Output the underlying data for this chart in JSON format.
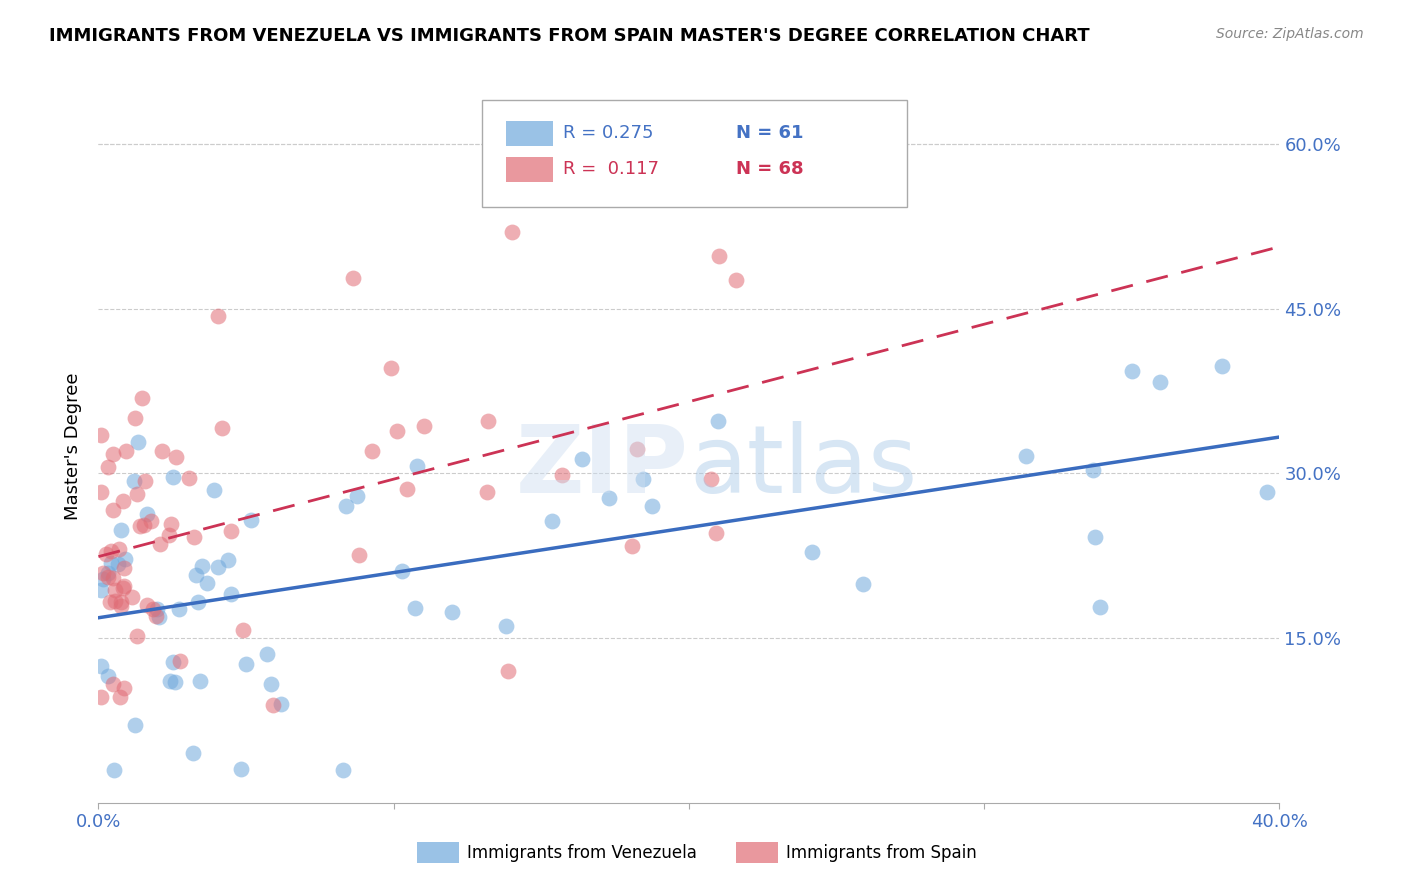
{
  "title": "IMMIGRANTS FROM VENEZUELA VS IMMIGRANTS FROM SPAIN MASTER'S DEGREE CORRELATION CHART",
  "source": "Source: ZipAtlas.com",
  "ylabel": "Master's Degree",
  "ytick_labels": [
    "60.0%",
    "45.0%",
    "30.0%",
    "15.0%"
  ],
  "ytick_values": [
    0.6,
    0.45,
    0.3,
    0.15
  ],
  "xmin": 0.0,
  "xmax": 0.4,
  "ymin": 0.0,
  "ymax": 0.65,
  "blue_color": "#6fa8dc",
  "pink_color": "#e06c75",
  "trend_blue": "#3a6cbf",
  "trend_pink": "#cc3355",
  "legend_blue_R": "R = 0.275",
  "legend_blue_N": "N = 61",
  "legend_pink_R": "R =  0.117",
  "legend_pink_N": "N = 68"
}
